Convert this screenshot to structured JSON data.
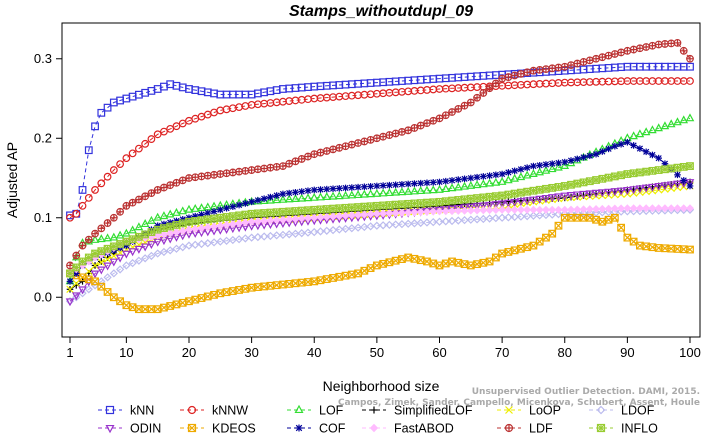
{
  "chart_data": {
    "type": "line",
    "title": "Stamps_withoutdupl_09",
    "xlabel": "Neighborhood size",
    "ylabel": "Adjusted AP",
    "xlim": [
      1,
      100
    ],
    "ylim": [
      -0.05,
      0.345
    ],
    "xticks": [
      1,
      10,
      20,
      30,
      40,
      50,
      60,
      70,
      80,
      90,
      100
    ],
    "yticks": [
      0.0,
      0.1,
      0.2,
      0.3
    ],
    "ytick_labels": [
      "0.0",
      "0.1",
      "0.2",
      "0.3"
    ],
    "grid": false,
    "legend_position": "bottom",
    "watermark": [
      "Unsupervised Outlier Detection. DAMI, 2015.",
      "Campos, Zimek, Sander, Campello, Micenkova, Schubert, Assent, Houle"
    ],
    "series": [
      {
        "name": "kNN",
        "color": "#3333dd",
        "marker": "square",
        "dash": "4,3",
        "keypoints": [
          [
            1,
            0.103
          ],
          [
            2,
            0.105
          ],
          [
            3,
            0.135
          ],
          [
            4,
            0.185
          ],
          [
            5,
            0.215
          ],
          [
            6,
            0.232
          ],
          [
            8,
            0.245
          ],
          [
            10,
            0.25
          ],
          [
            15,
            0.262
          ],
          [
            17,
            0.268
          ],
          [
            20,
            0.262
          ],
          [
            25,
            0.255
          ],
          [
            30,
            0.255
          ],
          [
            35,
            0.262
          ],
          [
            40,
            0.265
          ],
          [
            50,
            0.27
          ],
          [
            60,
            0.275
          ],
          [
            70,
            0.28
          ],
          [
            80,
            0.285
          ],
          [
            90,
            0.29
          ],
          [
            100,
            0.29
          ]
        ]
      },
      {
        "name": "kNNW",
        "color": "#dd2222",
        "marker": "circle",
        "dash": "4,3",
        "keypoints": [
          [
            1,
            0.1
          ],
          [
            2,
            0.105
          ],
          [
            3,
            0.115
          ],
          [
            5,
            0.135
          ],
          [
            8,
            0.16
          ],
          [
            10,
            0.175
          ],
          [
            15,
            0.205
          ],
          [
            20,
            0.222
          ],
          [
            25,
            0.235
          ],
          [
            30,
            0.242
          ],
          [
            40,
            0.25
          ],
          [
            50,
            0.256
          ],
          [
            60,
            0.262
          ],
          [
            70,
            0.266
          ],
          [
            80,
            0.27
          ],
          [
            90,
            0.272
          ],
          [
            100,
            0.272
          ]
        ]
      },
      {
        "name": "LOF",
        "color": "#33dd33",
        "marker": "triangle",
        "dash": "4,3",
        "keypoints": [
          [
            1,
            0.02
          ],
          [
            2,
            0.05
          ],
          [
            3,
            0.068
          ],
          [
            5,
            0.072
          ],
          [
            8,
            0.075
          ],
          [
            10,
            0.08
          ],
          [
            15,
            0.1
          ],
          [
            20,
            0.11
          ],
          [
            30,
            0.12
          ],
          [
            40,
            0.125
          ],
          [
            50,
            0.13
          ],
          [
            60,
            0.135
          ],
          [
            70,
            0.145
          ],
          [
            80,
            0.165
          ],
          [
            90,
            0.2
          ],
          [
            100,
            0.225
          ]
        ]
      },
      {
        "name": "SimplifiedLOF",
        "color": "#000000",
        "marker": "plus",
        "dash": "6,2",
        "keypoints": [
          [
            1,
            0.01
          ],
          [
            3,
            0.02
          ],
          [
            5,
            0.04
          ],
          [
            8,
            0.055
          ],
          [
            10,
            0.07
          ],
          [
            15,
            0.085
          ],
          [
            20,
            0.092
          ],
          [
            30,
            0.1
          ],
          [
            40,
            0.105
          ],
          [
            50,
            0.11
          ],
          [
            60,
            0.115
          ],
          [
            70,
            0.12
          ],
          [
            80,
            0.125
          ],
          [
            90,
            0.135
          ],
          [
            100,
            0.145
          ]
        ]
      },
      {
        "name": "LoOP",
        "color": "#eeee00",
        "marker": "x",
        "dash": "4,3",
        "keypoints": [
          [
            1,
            0.01
          ],
          [
            3,
            0.025
          ],
          [
            5,
            0.04
          ],
          [
            10,
            0.06
          ],
          [
            15,
            0.075
          ],
          [
            20,
            0.085
          ],
          [
            30,
            0.095
          ],
          [
            40,
            0.1
          ],
          [
            50,
            0.105
          ],
          [
            60,
            0.11
          ],
          [
            70,
            0.115
          ],
          [
            80,
            0.125
          ],
          [
            90,
            0.13
          ],
          [
            100,
            0.14
          ]
        ]
      },
      {
        "name": "LDOF",
        "color": "#bbbbee",
        "marker": "diamond",
        "dash": "4,3",
        "keypoints": [
          [
            1,
            -0.005
          ],
          [
            3,
            0.005
          ],
          [
            5,
            0.015
          ],
          [
            10,
            0.04
          ],
          [
            15,
            0.055
          ],
          [
            20,
            0.065
          ],
          [
            30,
            0.075
          ],
          [
            40,
            0.082
          ],
          [
            50,
            0.09
          ],
          [
            60,
            0.095
          ],
          [
            70,
            0.1
          ],
          [
            80,
            0.105
          ],
          [
            90,
            0.108
          ],
          [
            100,
            0.11
          ]
        ]
      },
      {
        "name": "ODIN",
        "color": "#9933cc",
        "marker": "triangle-down",
        "dash": "4,3",
        "keypoints": [
          [
            1,
            -0.005
          ],
          [
            3,
            0.01
          ],
          [
            5,
            0.03
          ],
          [
            10,
            0.055
          ],
          [
            15,
            0.07
          ],
          [
            20,
            0.08
          ],
          [
            30,
            0.09
          ],
          [
            40,
            0.097
          ],
          [
            50,
            0.103
          ],
          [
            60,
            0.11
          ],
          [
            70,
            0.118
          ],
          [
            80,
            0.128
          ],
          [
            90,
            0.135
          ],
          [
            100,
            0.145
          ]
        ]
      },
      {
        "name": "KDEOS",
        "color": "#eeaa00",
        "marker": "square-x",
        "dash": "4,3",
        "keypoints": [
          [
            1,
            0.03
          ],
          [
            5,
            0.02
          ],
          [
            8,
            0.0
          ],
          [
            10,
            -0.01
          ],
          [
            12,
            -0.015
          ],
          [
            15,
            -0.015
          ],
          [
            20,
            -0.005
          ],
          [
            25,
            0.005
          ],
          [
            30,
            0.012
          ],
          [
            40,
            0.02
          ],
          [
            47,
            0.03
          ],
          [
            50,
            0.04
          ],
          [
            55,
            0.05
          ],
          [
            58,
            0.045
          ],
          [
            60,
            0.04
          ],
          [
            62,
            0.045
          ],
          [
            65,
            0.04
          ],
          [
            68,
            0.045
          ],
          [
            70,
            0.055
          ],
          [
            75,
            0.065
          ],
          [
            78,
            0.08
          ],
          [
            80,
            0.1
          ],
          [
            82,
            0.1
          ],
          [
            84,
            0.1
          ],
          [
            86,
            0.095
          ],
          [
            88,
            0.1
          ],
          [
            90,
            0.075
          ],
          [
            92,
            0.065
          ],
          [
            95,
            0.062
          ],
          [
            100,
            0.06
          ]
        ]
      },
      {
        "name": "COF",
        "color": "#000099",
        "marker": "star",
        "dash": "4,3",
        "keypoints": [
          [
            1,
            0.02
          ],
          [
            3,
            0.04
          ],
          [
            5,
            0.05
          ],
          [
            10,
            0.065
          ],
          [
            15,
            0.09
          ],
          [
            20,
            0.1
          ],
          [
            25,
            0.11
          ],
          [
            30,
            0.12
          ],
          [
            35,
            0.13
          ],
          [
            40,
            0.135
          ],
          [
            50,
            0.14
          ],
          [
            60,
            0.145
          ],
          [
            65,
            0.15
          ],
          [
            70,
            0.155
          ],
          [
            75,
            0.165
          ],
          [
            80,
            0.17
          ],
          [
            85,
            0.18
          ],
          [
            88,
            0.19
          ],
          [
            90,
            0.195
          ],
          [
            95,
            0.175
          ],
          [
            100,
            0.14
          ]
        ]
      },
      {
        "name": "FastABOD",
        "color": "#ffbbff",
        "marker": "diamond-filled",
        "dash": "4,3",
        "keypoints": [
          [
            1,
            0.03
          ],
          [
            5,
            0.05
          ],
          [
            10,
            0.07
          ],
          [
            20,
            0.085
          ],
          [
            30,
            0.095
          ],
          [
            40,
            0.1
          ],
          [
            50,
            0.105
          ],
          [
            60,
            0.108
          ],
          [
            70,
            0.11
          ],
          [
            80,
            0.11
          ],
          [
            90,
            0.112
          ],
          [
            100,
            0.112
          ]
        ]
      },
      {
        "name": "LDF",
        "color": "#bb3333",
        "marker": "circle-plus",
        "dash": "4,3",
        "keypoints": [
          [
            1,
            0.04
          ],
          [
            3,
            0.065
          ],
          [
            5,
            0.08
          ],
          [
            8,
            0.1
          ],
          [
            10,
            0.115
          ],
          [
            15,
            0.135
          ],
          [
            20,
            0.15
          ],
          [
            25,
            0.155
          ],
          [
            30,
            0.16
          ],
          [
            35,
            0.165
          ],
          [
            40,
            0.18
          ],
          [
            45,
            0.19
          ],
          [
            50,
            0.2
          ],
          [
            55,
            0.21
          ],
          [
            60,
            0.225
          ],
          [
            65,
            0.245
          ],
          [
            70,
            0.275
          ],
          [
            75,
            0.285
          ],
          [
            80,
            0.29
          ],
          [
            85,
            0.3
          ],
          [
            90,
            0.31
          ],
          [
            95,
            0.318
          ],
          [
            98,
            0.32
          ],
          [
            100,
            0.3
          ]
        ]
      },
      {
        "name": "INFLO",
        "color": "#99cc33",
        "marker": "square-star",
        "dash": "4,3",
        "keypoints": [
          [
            1,
            0.03
          ],
          [
            3,
            0.045
          ],
          [
            5,
            0.055
          ],
          [
            10,
            0.07
          ],
          [
            15,
            0.085
          ],
          [
            20,
            0.095
          ],
          [
            30,
            0.105
          ],
          [
            40,
            0.11
          ],
          [
            50,
            0.115
          ],
          [
            60,
            0.12
          ],
          [
            70,
            0.128
          ],
          [
            80,
            0.14
          ],
          [
            90,
            0.155
          ],
          [
            100,
            0.165
          ]
        ]
      }
    ],
    "legend_order": [
      "kNN",
      "kNNW",
      "LOF",
      "SimplifiedLOF",
      "LoOP",
      "LDOF",
      "ODIN",
      "KDEOS",
      "COF",
      "FastABOD",
      "LDF",
      "INFLO"
    ]
  }
}
